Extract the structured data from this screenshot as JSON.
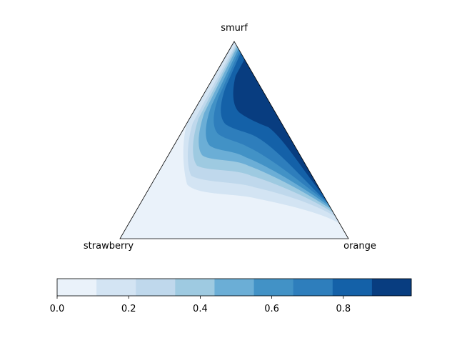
{
  "chart_data": {
    "type": "ternary-contour",
    "title": "",
    "vertex_labels": {
      "top": "smurf",
      "left": "strawberry",
      "right": "orange"
    },
    "colormap": "Blues",
    "levels": [
      0.0,
      0.11,
      0.22,
      0.33,
      0.44,
      0.55,
      0.66,
      0.77,
      0.88,
      0.99
    ],
    "level_colors": [
      "#eaf2fa",
      "#d3e4f3",
      "#bfd8ec",
      "#9ecae1",
      "#6baed6",
      "#4292c6",
      "#2e7ebc",
      "#1461a8",
      "#083d80"
    ],
    "colorbar": {
      "orientation": "horizontal",
      "placement": "bottom",
      "ticks": [
        "0.0",
        "0.2",
        "0.4",
        "0.6",
        "0.8"
      ],
      "tick_values": [
        0.0,
        0.2,
        0.4,
        0.6,
        0.8
      ],
      "range": [
        0.0,
        0.99
      ]
    }
  }
}
